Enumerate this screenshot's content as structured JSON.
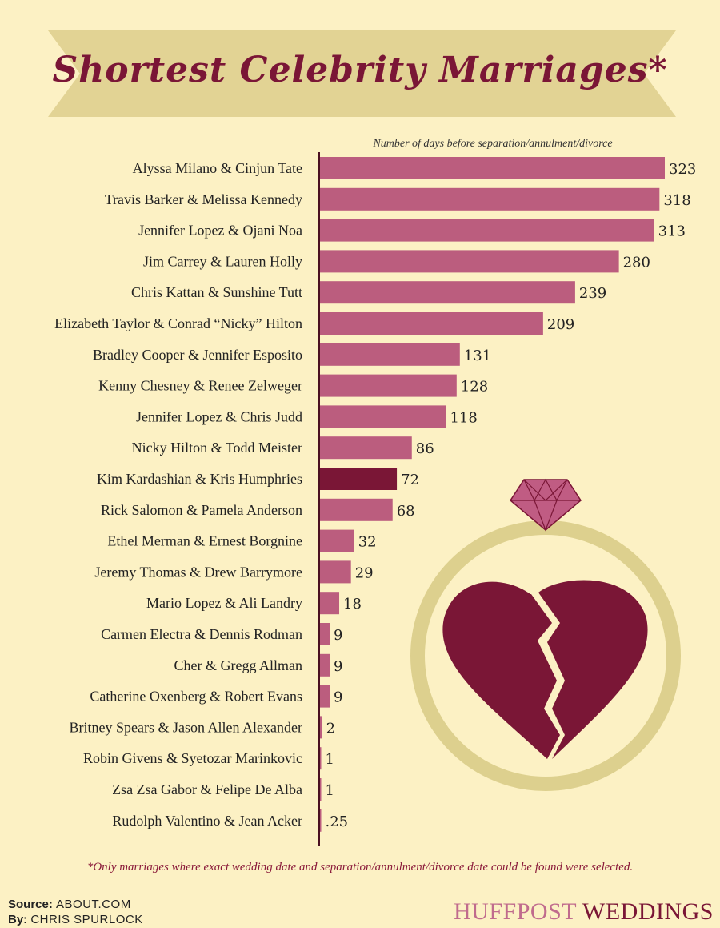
{
  "title": "Shortest Celebrity Marriages*",
  "colors": {
    "background": "#fcf1c4",
    "banner": "#e2d394",
    "bar": "#bb5d7e",
    "highlight": "#7a1636",
    "axis": "#4a1020",
    "ring": "#ddd08e",
    "gem": "#c05c83",
    "heart": "#7a1636"
  },
  "icons": [
    "diamond-ring-icon",
    "broken-heart-icon"
  ],
  "chart_data": {
    "type": "bar",
    "orientation": "horizontal",
    "xlabel": "Number of days before separation/annulment/divorce",
    "categories": [
      "Alyssa Milano & Cinjun Tate",
      "Travis Barker & Melissa Kennedy",
      "Jennifer Lopez & Ojani Noa",
      "Jim Carrey & Lauren Holly",
      "Chris Kattan & Sunshine Tutt",
      "Elizabeth Taylor & Conrad “Nicky” Hilton",
      "Bradley Cooper & Jennifer Esposito",
      "Kenny Chesney & Renee Zelweger",
      "Jennifer Lopez & Chris Judd",
      "Nicky Hilton & Todd Meister",
      "Kim Kardashian & Kris Humphries",
      "Rick Salomon & Pamela Anderson",
      "Ethel Merman & Ernest Borgnine",
      "Jeremy Thomas & Drew Barrymore",
      "Mario Lopez & Ali Landry",
      "Carmen Electra & Dennis Rodman",
      "Cher & Gregg Allman",
      "Catherine Oxenberg & Robert Evans",
      "Britney Spears & Jason Allen Alexander",
      "Robin Givens & Syetozar Marinkovic",
      "Zsa Zsa Gabor & Felipe De Alba",
      "Rudolph Valentino & Jean Acker"
    ],
    "values": [
      323,
      318,
      313,
      280,
      239,
      209,
      131,
      128,
      118,
      86,
      72,
      68,
      32,
      29,
      18,
      9,
      9,
      9,
      2,
      1,
      1,
      0.25
    ],
    "value_labels": [
      "323",
      "318",
      "313",
      "280",
      "239",
      "209",
      "131",
      "128",
      "118",
      "86",
      "72",
      "68",
      "32",
      "29",
      "18",
      "9",
      "9",
      "9",
      "2",
      "1",
      "1",
      ".25"
    ],
    "highlight": "Kim Kardashian & Kris Humphries",
    "xlim": [
      0,
      323
    ],
    "grid": false,
    "legend": "none"
  },
  "footnote": "*Only marriages where exact wedding date and separation/annulment/divorce date could be found were selected.",
  "credits": {
    "source_label": "Source:",
    "source_value": "ABOUT.COM",
    "by_label": "By:",
    "by_value": "CHRIS SPURLOCK"
  },
  "brand": {
    "part1": "HUFFPOST",
    "part2": "WEDDINGS"
  }
}
